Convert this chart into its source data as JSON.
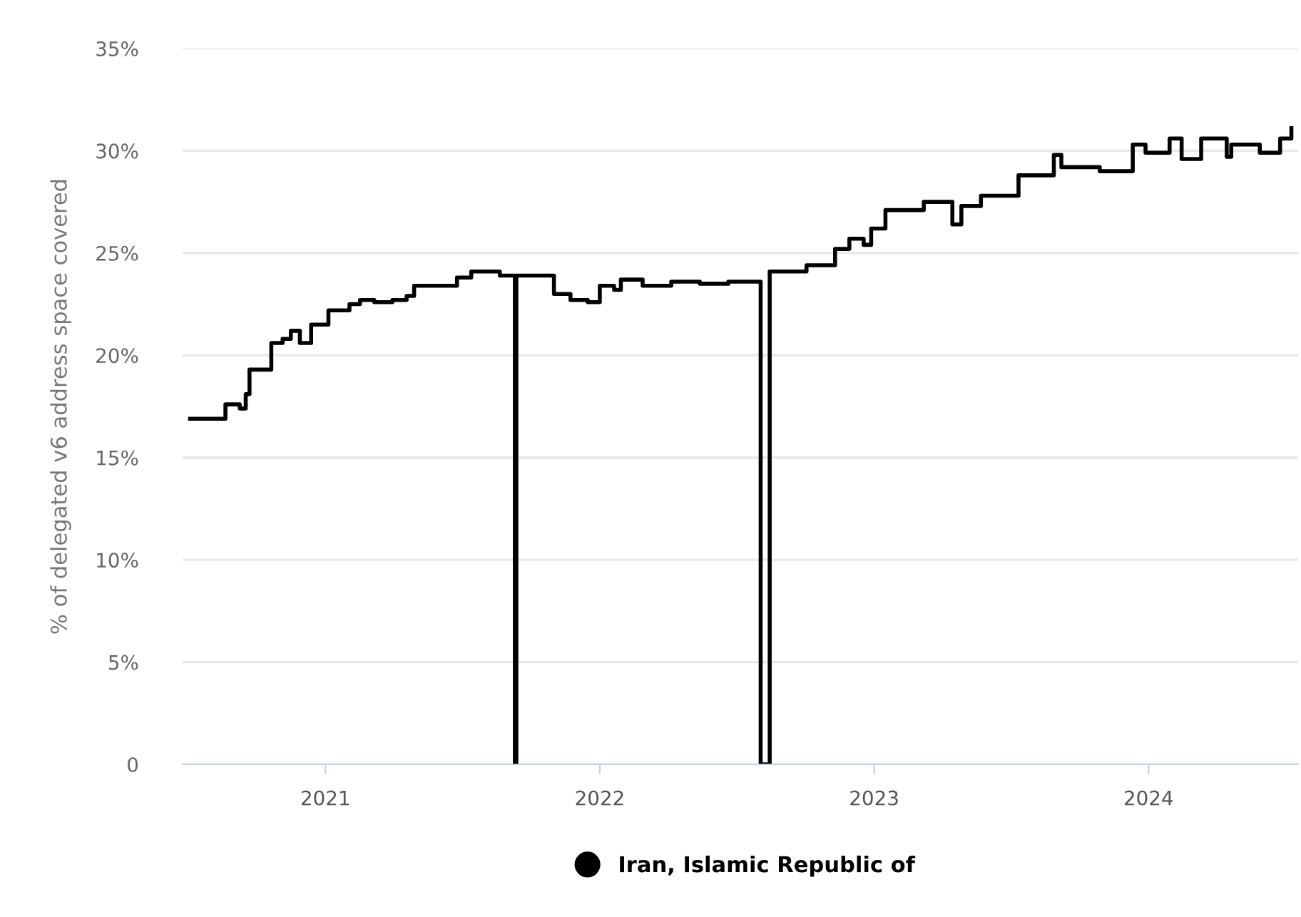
{
  "chart_data": {
    "type": "step",
    "ylabel": "% of delegated v6 address space covered",
    "xlim": [
      "2020-06-25",
      "2024-07-18"
    ],
    "xticks": [
      {
        "value": "2021-01-01",
        "label": "2021"
      },
      {
        "value": "2022-01-01",
        "label": "2022"
      },
      {
        "value": "2023-01-01",
        "label": "2023"
      },
      {
        "value": "2024-01-01",
        "label": "2024"
      }
    ],
    "ylim": [
      0,
      35
    ],
    "yticks": [
      {
        "value": 0,
        "label": "0"
      },
      {
        "value": 5,
        "label": "5%"
      },
      {
        "value": 10,
        "label": "10%"
      },
      {
        "value": 15,
        "label": "15%"
      },
      {
        "value": 20,
        "label": "20%"
      },
      {
        "value": 25,
        "label": "25%"
      },
      {
        "value": 30,
        "label": "30%"
      },
      {
        "value": 35,
        "label": "35%"
      }
    ],
    "grid": "y",
    "legend": "bottom",
    "marker": "none",
    "line_style": "solid",
    "x": [
      "2020-07-05",
      "2020-08-15",
      "2020-08-21",
      "2020-09-09",
      "2020-09-17",
      "2020-09-22",
      "2020-10-17",
      "2020-10-21",
      "2020-11-05",
      "2020-11-16",
      "2020-11-28",
      "2020-12-13",
      "2021-01-05",
      "2021-02-02",
      "2021-02-16",
      "2021-03-07",
      "2021-03-31",
      "2021-04-19",
      "2021-04-29",
      "2021-06-06",
      "2021-06-25",
      "2021-07-14",
      "2021-08-21",
      "2021-09-10",
      "2021-09-12",
      "2021-10-07",
      "2021-11-01",
      "2021-11-23",
      "2021-12-16",
      "2022-01-01",
      "2022-01-20",
      "2022-01-29",
      "2022-02-27",
      "2022-04-06",
      "2022-05-14",
      "2022-06-21",
      "2022-08-03",
      "2022-08-15",
      "2022-09-14",
      "2022-10-03",
      "2022-10-22",
      "2022-11-10",
      "2022-11-29",
      "2022-12-18",
      "2022-12-28",
      "2023-01-16",
      "2023-03-08",
      "2023-04-15",
      "2023-04-27",
      "2023-05-23",
      "2023-07-12",
      "2023-08-28",
      "2023-09-07",
      "2023-10-28",
      "2023-12-11",
      "2023-12-28",
      "2024-01-29",
      "2024-02-14",
      "2024-03-11",
      "2024-04-14",
      "2024-04-20",
      "2024-05-28",
      "2024-06-24",
      "2024-07-09"
    ],
    "series": [
      {
        "name": "Iran, Islamic Republic of",
        "color": "#000000",
        "values": [
          16.9,
          16.9,
          17.6,
          17.4,
          18.1,
          19.3,
          19.3,
          20.6,
          20.8,
          21.2,
          20.6,
          21.5,
          22.2,
          22.5,
          22.7,
          22.6,
          22.7,
          22.9,
          23.4,
          23.4,
          23.8,
          24.1,
          23.9,
          0,
          23.9,
          23.9,
          23.0,
          22.7,
          22.6,
          23.4,
          23.2,
          23.7,
          23.4,
          23.6,
          23.5,
          23.6,
          0,
          24.1,
          24.1,
          24.4,
          24.4,
          25.2,
          25.7,
          25.4,
          26.2,
          27.1,
          27.5,
          26.4,
          27.3,
          27.8,
          28.8,
          29.8,
          29.2,
          29.0,
          30.3,
          29.9,
          30.6,
          29.6,
          30.6,
          29.7,
          30.3,
          29.9,
          30.6,
          31.1
        ]
      }
    ]
  }
}
